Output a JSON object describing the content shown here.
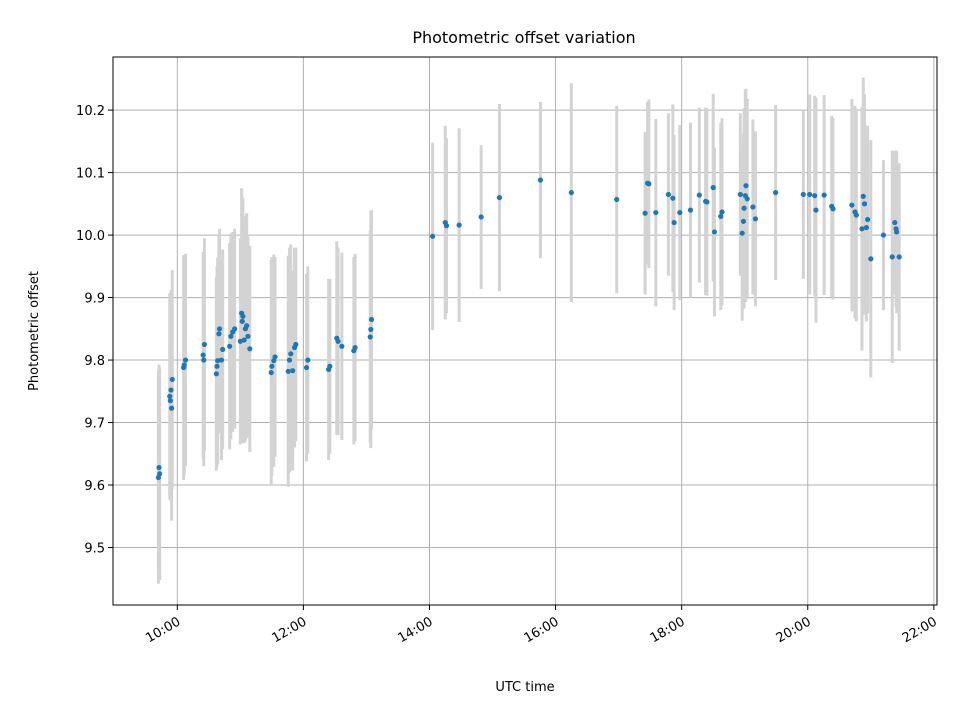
{
  "chart_data": {
    "type": "scatter",
    "title": "Photometric offset variation",
    "xlabel": "UTC time",
    "ylabel": "Photometric offset",
    "x_unit": "hours",
    "xlim": [
      8.98,
      22.05
    ],
    "ylim": [
      9.408,
      10.285
    ],
    "xticks": [
      {
        "value": 10,
        "label": "10:00"
      },
      {
        "value": 12,
        "label": "12:00"
      },
      {
        "value": 14,
        "label": "14:00"
      },
      {
        "value": 16,
        "label": "16:00"
      },
      {
        "value": 18,
        "label": "18:00"
      },
      {
        "value": 20,
        "label": "20:00"
      },
      {
        "value": 22,
        "label": "22:00"
      }
    ],
    "yticks": [
      {
        "value": 9.5,
        "label": "9.5"
      },
      {
        "value": 9.6,
        "label": "9.6"
      },
      {
        "value": 9.7,
        "label": "9.7"
      },
      {
        "value": 9.8,
        "label": "9.8"
      },
      {
        "value": 9.9,
        "label": "9.9"
      },
      {
        "value": 10.0,
        "label": "10.0"
      },
      {
        "value": 10.1,
        "label": "10.1"
      },
      {
        "value": 10.2,
        "label": "10.2"
      }
    ],
    "grid": true,
    "legend": "none",
    "colors": {
      "point": "#1f77b4",
      "errorbar": "#d3d3d3",
      "grid": "#b0b0b0"
    },
    "series": [
      {
        "points": [
          {
            "x": 9.7,
            "y": 9.612,
            "err": 0.17
          },
          {
            "x": 9.71,
            "y": 9.628,
            "err": 0.165
          },
          {
            "x": 9.72,
            "y": 9.618,
            "err": 0.17
          },
          {
            "x": 9.88,
            "y": 9.742,
            "err": 0.165
          },
          {
            "x": 9.89,
            "y": 9.735,
            "err": 0.16
          },
          {
            "x": 9.9,
            "y": 9.752,
            "err": 0.16
          },
          {
            "x": 9.91,
            "y": 9.723,
            "err": 0.18
          },
          {
            "x": 9.92,
            "y": 9.769,
            "err": 0.175
          },
          {
            "x": 10.1,
            "y": 9.788,
            "err": 0.18
          },
          {
            "x": 10.11,
            "y": 9.792,
            "err": 0.175
          },
          {
            "x": 10.13,
            "y": 9.8,
            "err": 0.17
          },
          {
            "x": 10.41,
            "y": 9.808,
            "err": 0.165
          },
          {
            "x": 10.42,
            "y": 9.8,
            "err": 0.17
          },
          {
            "x": 10.43,
            "y": 9.825,
            "err": 0.17
          },
          {
            "x": 10.62,
            "y": 9.778,
            "err": 0.155
          },
          {
            "x": 10.63,
            "y": 9.79,
            "err": 0.16
          },
          {
            "x": 10.64,
            "y": 9.799,
            "err": 0.165
          },
          {
            "x": 10.66,
            "y": 9.842,
            "err": 0.16
          },
          {
            "x": 10.67,
            "y": 9.85,
            "err": 0.16
          },
          {
            "x": 10.7,
            "y": 9.8,
            "err": 0.16
          },
          {
            "x": 10.72,
            "y": 9.817,
            "err": 0.16
          },
          {
            "x": 10.83,
            "y": 9.822,
            "err": 0.165
          },
          {
            "x": 10.85,
            "y": 9.838,
            "err": 0.165
          },
          {
            "x": 10.88,
            "y": 9.845,
            "err": 0.16
          },
          {
            "x": 10.91,
            "y": 9.85,
            "err": 0.16
          },
          {
            "x": 11.0,
            "y": 9.83,
            "err": 0.165
          },
          {
            "x": 11.02,
            "y": 9.875,
            "err": 0.2
          },
          {
            "x": 11.03,
            "y": 9.862,
            "err": 0.195
          },
          {
            "x": 11.04,
            "y": 9.87,
            "err": 0.19
          },
          {
            "x": 11.06,
            "y": 9.832,
            "err": 0.165
          },
          {
            "x": 11.08,
            "y": 9.85,
            "err": 0.18
          },
          {
            "x": 11.1,
            "y": 9.855,
            "err": 0.18
          },
          {
            "x": 11.12,
            "y": 9.838,
            "err": 0.16
          },
          {
            "x": 11.15,
            "y": 9.818,
            "err": 0.165
          },
          {
            "x": 11.49,
            "y": 9.78,
            "err": 0.18
          },
          {
            "x": 11.5,
            "y": 9.79,
            "err": 0.175
          },
          {
            "x": 11.53,
            "y": 9.799,
            "err": 0.17
          },
          {
            "x": 11.55,
            "y": 9.805,
            "err": 0.16
          },
          {
            "x": 11.76,
            "y": 9.782,
            "err": 0.185
          },
          {
            "x": 11.78,
            "y": 9.8,
            "err": 0.18
          },
          {
            "x": 11.8,
            "y": 9.81,
            "err": 0.175
          },
          {
            "x": 11.83,
            "y": 9.783,
            "err": 0.16
          },
          {
            "x": 11.86,
            "y": 9.82,
            "err": 0.16
          },
          {
            "x": 11.88,
            "y": 9.825,
            "err": 0.155
          },
          {
            "x": 12.05,
            "y": 9.788,
            "err": 0.15
          },
          {
            "x": 12.07,
            "y": 9.8,
            "err": 0.15
          },
          {
            "x": 12.4,
            "y": 9.785,
            "err": 0.145
          },
          {
            "x": 12.42,
            "y": 9.79,
            "err": 0.14
          },
          {
            "x": 12.53,
            "y": 9.835,
            "err": 0.155
          },
          {
            "x": 12.55,
            "y": 9.83,
            "err": 0.15
          },
          {
            "x": 12.61,
            "y": 9.822,
            "err": 0.15
          },
          {
            "x": 12.8,
            "y": 9.815,
            "err": 0.15
          },
          {
            "x": 12.82,
            "y": 9.82,
            "err": 0.15
          },
          {
            "x": 13.06,
            "y": 9.837,
            "err": 0.17
          },
          {
            "x": 13.07,
            "y": 9.849,
            "err": 0.19
          },
          {
            "x": 13.08,
            "y": 9.865,
            "err": 0.175
          },
          {
            "x": 14.05,
            "y": 9.998,
            "err": 0.15
          },
          {
            "x": 14.25,
            "y": 10.02,
            "err": 0.155
          },
          {
            "x": 14.27,
            "y": 10.015,
            "err": 0.14
          },
          {
            "x": 14.47,
            "y": 10.016,
            "err": 0.155
          },
          {
            "x": 14.82,
            "y": 10.029,
            "err": 0.115
          },
          {
            "x": 15.11,
            "y": 10.06,
            "err": 0.15
          },
          {
            "x": 15.76,
            "y": 10.088,
            "err": 0.125
          },
          {
            "x": 16.25,
            "y": 10.068,
            "err": 0.175
          },
          {
            "x": 16.97,
            "y": 10.057,
            "err": 0.15
          },
          {
            "x": 17.42,
            "y": 10.035,
            "err": 0.13
          },
          {
            "x": 17.46,
            "y": 10.083,
            "err": 0.13
          },
          {
            "x": 17.48,
            "y": 10.082,
            "err": 0.135
          },
          {
            "x": 17.59,
            "y": 10.036,
            "err": 0.15
          },
          {
            "x": 17.79,
            "y": 10.065,
            "err": 0.13
          },
          {
            "x": 17.86,
            "y": 10.059,
            "err": 0.15
          },
          {
            "x": 17.88,
            "y": 10.02,
            "err": 0.14
          },
          {
            "x": 17.97,
            "y": 10.036,
            "err": 0.14
          },
          {
            "x": 18.14,
            "y": 10.04,
            "err": 0.14
          },
          {
            "x": 18.28,
            "y": 10.064,
            "err": 0.14
          },
          {
            "x": 18.38,
            "y": 10.054,
            "err": 0.15
          },
          {
            "x": 18.4,
            "y": 10.053,
            "err": 0.15
          },
          {
            "x": 18.5,
            "y": 10.076,
            "err": 0.15
          },
          {
            "x": 18.52,
            "y": 10.005,
            "err": 0.135
          },
          {
            "x": 18.62,
            "y": 10.03,
            "err": 0.15
          },
          {
            "x": 18.64,
            "y": 10.037,
            "err": 0.15
          },
          {
            "x": 18.93,
            "y": 10.065,
            "err": 0.13
          },
          {
            "x": 18.96,
            "y": 10.003,
            "err": 0.14
          },
          {
            "x": 18.98,
            "y": 10.022,
            "err": 0.14
          },
          {
            "x": 18.99,
            "y": 10.043,
            "err": 0.16
          },
          {
            "x": 19.01,
            "y": 10.063,
            "err": 0.17
          },
          {
            "x": 19.02,
            "y": 10.079,
            "err": 0.155
          },
          {
            "x": 19.04,
            "y": 10.058,
            "err": 0.16
          },
          {
            "x": 19.13,
            "y": 10.045,
            "err": 0.14
          },
          {
            "x": 19.17,
            "y": 10.026,
            "err": 0.14
          },
          {
            "x": 19.49,
            "y": 10.068,
            "err": 0.14
          },
          {
            "x": 19.93,
            "y": 10.065,
            "err": 0.135
          },
          {
            "x": 20.03,
            "y": 10.065,
            "err": 0.16
          },
          {
            "x": 20.11,
            "y": 10.063,
            "err": 0.16
          },
          {
            "x": 20.13,
            "y": 10.04,
            "err": 0.18
          },
          {
            "x": 20.26,
            "y": 10.064,
            "err": 0.16
          },
          {
            "x": 20.38,
            "y": 10.046,
            "err": 0.145
          },
          {
            "x": 20.4,
            "y": 10.042,
            "err": 0.145
          },
          {
            "x": 20.7,
            "y": 10.048,
            "err": 0.17
          },
          {
            "x": 20.75,
            "y": 10.037,
            "err": 0.17
          },
          {
            "x": 20.77,
            "y": 10.032,
            "err": 0.17
          },
          {
            "x": 20.86,
            "y": 10.01,
            "err": 0.195
          },
          {
            "x": 20.88,
            "y": 10.062,
            "err": 0.19
          },
          {
            "x": 20.9,
            "y": 10.05,
            "err": 0.175
          },
          {
            "x": 20.93,
            "y": 10.012,
            "err": 0.15
          },
          {
            "x": 20.95,
            "y": 10.025,
            "err": 0.15
          },
          {
            "x": 21.0,
            "y": 9.962,
            "err": 0.19
          },
          {
            "x": 21.2,
            "y": 10.0,
            "err": 0.12
          },
          {
            "x": 21.34,
            "y": 9.965,
            "err": 0.17
          },
          {
            "x": 21.38,
            "y": 10.02,
            "err": 0.115
          },
          {
            "x": 21.4,
            "y": 10.01,
            "err": 0.125
          },
          {
            "x": 21.41,
            "y": 10.005,
            "err": 0.13
          },
          {
            "x": 21.45,
            "y": 9.965,
            "err": 0.15
          }
        ]
      }
    ]
  }
}
